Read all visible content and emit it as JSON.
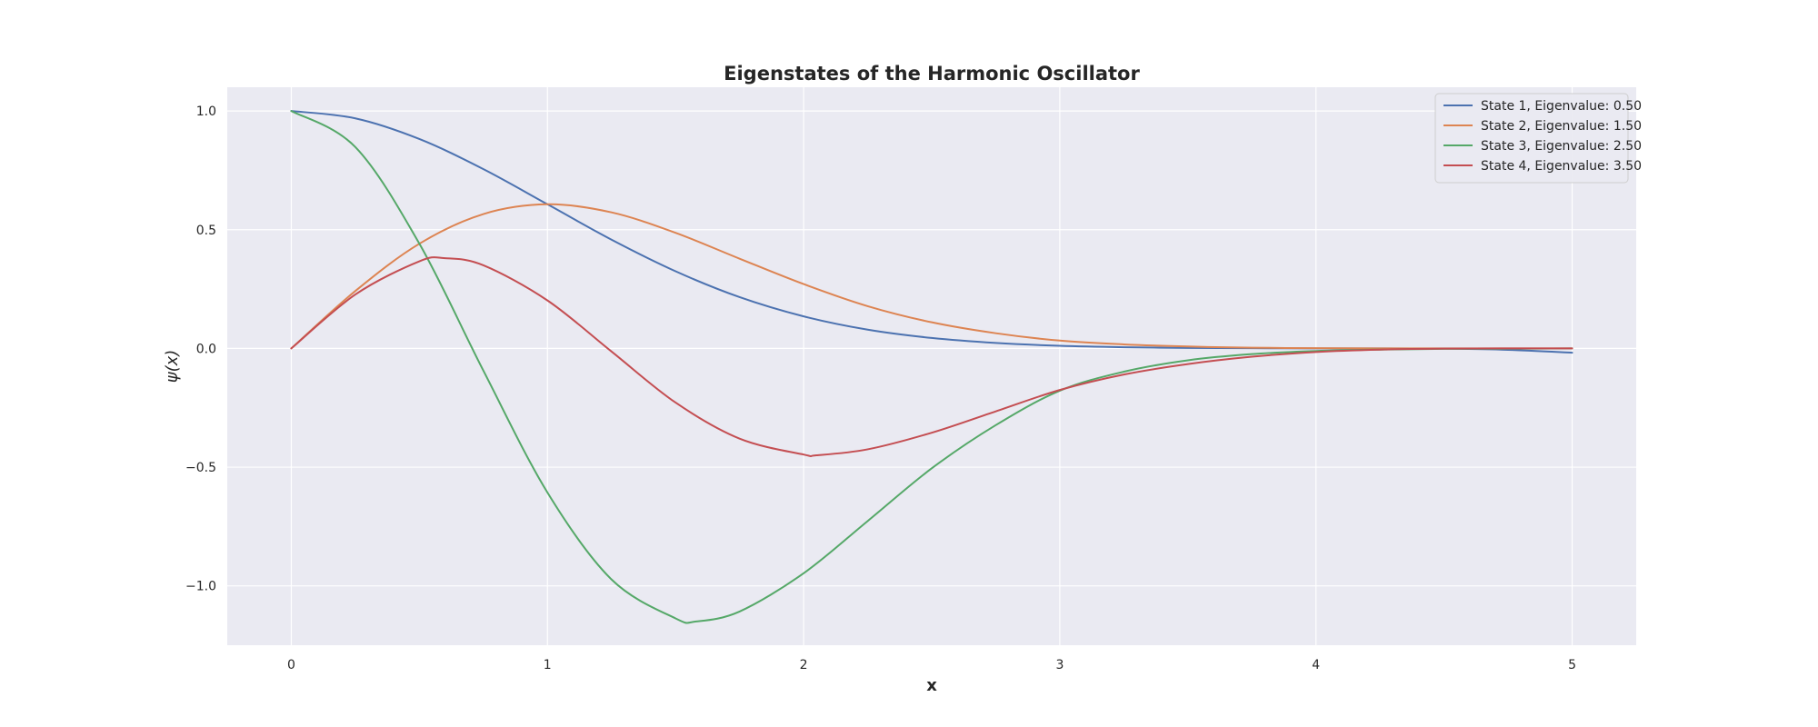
{
  "chart_data": {
    "type": "line",
    "title": "Eigenstates of the Harmonic Oscillator",
    "xlabel": "x",
    "ylabel": "ψ(x)",
    "xlim": [
      -0.25,
      5.25
    ],
    "ylim": [
      -1.25,
      1.1
    ],
    "xticks": [
      0,
      1,
      2,
      3,
      4,
      5
    ],
    "yticks": [
      -1.0,
      -0.5,
      0.0,
      0.5,
      1.0
    ],
    "xtick_labels": [
      "0",
      "1",
      "2",
      "3",
      "4",
      "5"
    ],
    "ytick_labels": [
      "−1.0",
      "−0.5",
      "0.0",
      "0.5",
      "1.0"
    ],
    "grid": true,
    "legend_position": "top-right",
    "background": "#eaeaf2",
    "series": [
      {
        "name": "State 1, Eigenvalue: 0.50",
        "color": "#4c72b0",
        "x": [
          0,
          0.25,
          0.5,
          0.75,
          1.0,
          1.25,
          1.5,
          1.75,
          2.0,
          2.25,
          2.5,
          2.75,
          3.0,
          3.25,
          3.5,
          3.75,
          4.0,
          4.25,
          4.5,
          4.75,
          5.0
        ],
        "y": [
          1.0,
          0.969,
          0.882,
          0.755,
          0.607,
          0.458,
          0.325,
          0.216,
          0.135,
          0.079,
          0.044,
          0.023,
          0.011,
          0.005,
          0.002,
          0.001,
          0.0,
          0.0,
          -0.001,
          -0.006,
          -0.018
        ]
      },
      {
        "name": "State 2, Eigenvalue: 1.50",
        "color": "#dd8452",
        "x": [
          0,
          0.25,
          0.5,
          0.75,
          1.0,
          1.25,
          1.5,
          1.75,
          2.0,
          2.25,
          2.5,
          2.75,
          3.0,
          3.25,
          3.5,
          3.75,
          4.0,
          4.25,
          4.5,
          4.75,
          5.0
        ],
        "y": [
          0.0,
          0.242,
          0.441,
          0.566,
          0.607,
          0.573,
          0.487,
          0.378,
          0.271,
          0.178,
          0.11,
          0.064,
          0.033,
          0.017,
          0.008,
          0.003,
          0.001,
          0.0,
          0.0,
          0.0,
          0.0
        ]
      },
      {
        "name": "State 3, Eigenvalue: 2.50",
        "color": "#55a868",
        "x": [
          0,
          0.25,
          0.5,
          0.75,
          1.0,
          1.25,
          1.5,
          1.58,
          1.75,
          2.0,
          2.25,
          2.5,
          2.75,
          3.0,
          3.25,
          3.5,
          3.75,
          4.0,
          4.25,
          4.5,
          4.75,
          5.0
        ],
        "y": [
          1.0,
          0.848,
          0.441,
          -0.094,
          -0.607,
          -0.973,
          -1.137,
          -1.15,
          -1.108,
          -0.947,
          -0.727,
          -0.505,
          -0.323,
          -0.178,
          -0.098,
          -0.05,
          -0.024,
          -0.011,
          -0.005,
          -0.002,
          -0.001,
          0.0
        ]
      },
      {
        "name": "State 4, Eigenvalue: 3.50",
        "color": "#c44e52",
        "x": [
          0,
          0.25,
          0.5,
          0.6,
          0.75,
          1.0,
          1.25,
          1.5,
          1.75,
          2.0,
          2.05,
          2.25,
          2.5,
          2.75,
          3.0,
          3.25,
          3.5,
          3.75,
          4.0,
          4.25,
          4.5,
          4.75,
          5.0
        ],
        "y": [
          0.0,
          0.227,
          0.367,
          0.38,
          0.35,
          0.202,
          -0.013,
          -0.228,
          -0.38,
          -0.447,
          -0.45,
          -0.425,
          -0.355,
          -0.265,
          -0.175,
          -0.11,
          -0.066,
          -0.035,
          -0.015,
          -0.005,
          -0.001,
          0.0,
          0.0
        ]
      }
    ]
  }
}
